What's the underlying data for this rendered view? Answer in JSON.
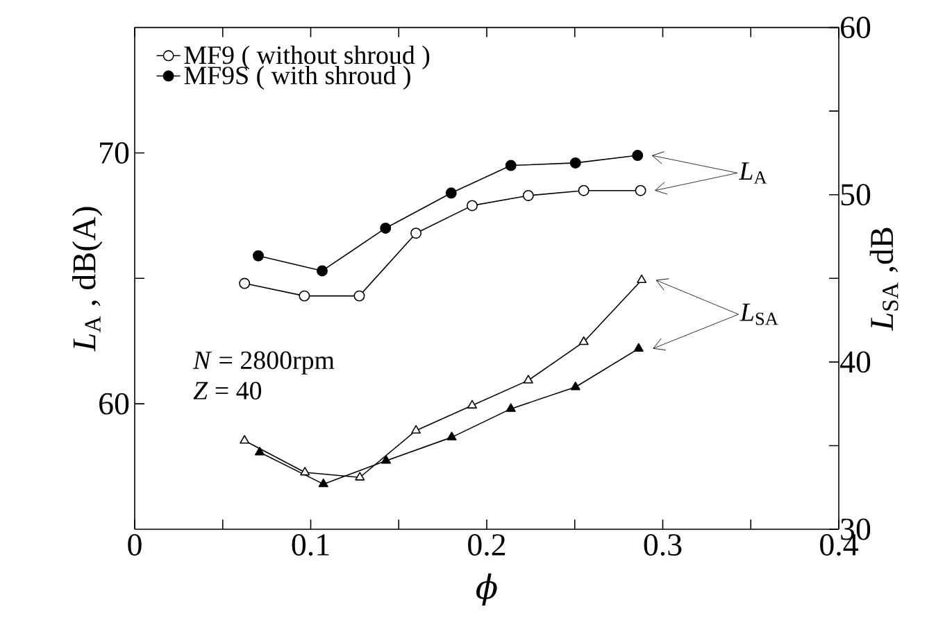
{
  "chart_data": {
    "type": "line",
    "xlabel": "ϕ",
    "ylabel": "*L*$_{A}$ , dB(A)",
    "y2label": "*L*$_{SA}$ ,dB",
    "xlim": [
      0,
      0.4
    ],
    "ylim": [
      55,
      75
    ],
    "y2lim": [
      30,
      60
    ],
    "xticks": [
      0,
      {
        "value": 0.05,
        "label": null
      },
      0.1,
      {
        "value": 0.15,
        "label": null
      },
      0.2,
      {
        "value": 0.25,
        "label": null
      },
      0.3,
      {
        "value": 0.35,
        "label": null
      },
      0.4
    ],
    "yticks": [
      60,
      {
        "value": 65,
        "label": null
      },
      70
    ],
    "y2ticks": [
      30,
      {
        "value": 35,
        "label": null
      },
      40,
      {
        "value": 45,
        "label": null
      },
      50,
      {
        "value": 55,
        "label": null
      },
      60
    ],
    "legend": "top left",
    "line_style": "solid",
    "series": [
      {
        "name": "MF9 ( without shroud )",
        "color": "#000000",
        "marker": "circle",
        "x": [
          0.0624,
          0.0964,
          0.1276,
          0.1598,
          0.1917,
          0.2236,
          0.2551,
          0.2874
        ],
        "values": [
          64.8,
          64.3,
          64.3,
          66.8,
          67.9,
          68.3,
          68.5,
          68.5
        ]
      },
      {
        "name": "MF9S ( with shroud )",
        "color": "#000000",
        "marker": "circle",
        "x": [
          0.0702,
          0.1065,
          0.1425,
          0.1798,
          0.2137,
          0.2504,
          0.2857
        ],
        "values": [
          65.9,
          65.3,
          67.0,
          68.4,
          69.5,
          69.6,
          69.9
        ]
      },
      {
        "color": "#000000",
        "marker": "triangle",
        "axis": "y2",
        "x": [
          0.0624,
          0.0967,
          0.1279,
          0.1598,
          0.1917,
          0.2236,
          0.2551,
          0.288
        ],
        "values": [
          35.3,
          33.4,
          33.1,
          35.9,
          37.4,
          38.9,
          41.2,
          44.9
        ]
      },
      {
        "color": "#000000",
        "marker": "triangle",
        "axis": "y2",
        "x": [
          0.071,
          0.1072,
          0.1428,
          0.1801,
          0.2137,
          0.2504,
          0.2863
        ],
        "values": [
          34.6,
          32.7,
          34.1,
          35.5,
          37.2,
          38.5,
          40.8
        ]
      }
    ],
    "annotations": [
      "*N* = 2800rpm",
      "*Z* = 40",
      "*L*$_{A}$",
      "*L*$_{SA}$"
    ]
  }
}
